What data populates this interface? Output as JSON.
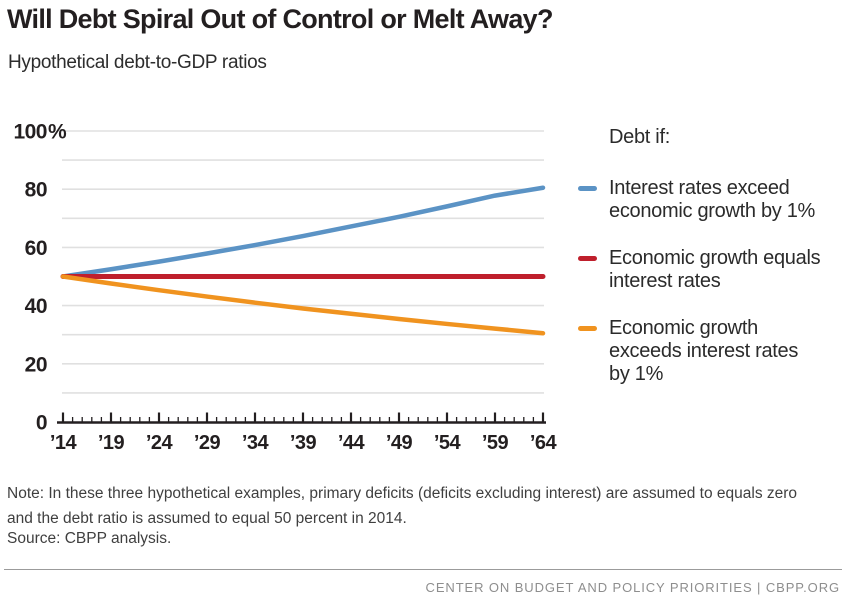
{
  "header": {
    "title": "Will Debt Spiral Out of Control or Melt Away?",
    "subtitle": "Hypothetical debt-to-GDP ratios"
  },
  "chart_data": {
    "type": "line",
    "title": "Will Debt Spiral Out of Control or Melt Away?",
    "subtitle": "Hypothetical debt-to-GDP ratios",
    "x": [
      2014,
      2019,
      2024,
      2029,
      2034,
      2039,
      2044,
      2049,
      2054,
      2059,
      2064
    ],
    "x_tick_labels": [
      "’14",
      "’19",
      "’24",
      "’29",
      "’34",
      "’39",
      "’44",
      "’49",
      "’54",
      "’59",
      "’64"
    ],
    "x_minor_tick_every_years": 1,
    "ylim": [
      0,
      100
    ],
    "y_ticks": [
      0,
      20,
      40,
      60,
      80,
      100
    ],
    "y_top_tick_suffix": "%",
    "grid": "horizontal every 10",
    "grid_color": "#e0e0e0",
    "axis_color": "#231f20",
    "legend_position": "right",
    "legend_title": "Debt if:",
    "series": [
      {
        "name": "Interest rates exceed economic growth by 1%",
        "legend_lines": [
          "Interest rates exceed",
          "economic growth by 1%"
        ],
        "color": "#5b93c5",
        "values": [
          50,
          52.5,
          55.1,
          57.9,
          60.8,
          63.9,
          67.2,
          70.5,
          74.1,
          77.8,
          80.5
        ]
      },
      {
        "name": "Economic growth equals interest rates",
        "legend_lines": [
          "Economic growth equals",
          "interest rates"
        ],
        "color": "#bf1f2c",
        "values": [
          50,
          50,
          50,
          50,
          50,
          50,
          50,
          50,
          50,
          50,
          50
        ]
      },
      {
        "name": "Economic growth exceeds interest rates by 1%",
        "legend_lines": [
          "Economic growth",
          "exceeds interest rates",
          "by 1%"
        ],
        "color": "#f0931f",
        "values": [
          50,
          47.6,
          45.3,
          43.1,
          41.0,
          39.0,
          37.2,
          35.4,
          33.7,
          32.1,
          30.5
        ]
      }
    ]
  },
  "notes": {
    "note": "Note: In these three hypothetical examples, primary deficits (deficits excluding interest) are assumed to equals zero and the debt ratio is assumed to equal 50 percent in 2014.",
    "source": "Source: CBPP analysis."
  },
  "footer": {
    "brand": "CENTER ON BUDGET AND POLICY PRIORITIES | CBPP.ORG"
  }
}
